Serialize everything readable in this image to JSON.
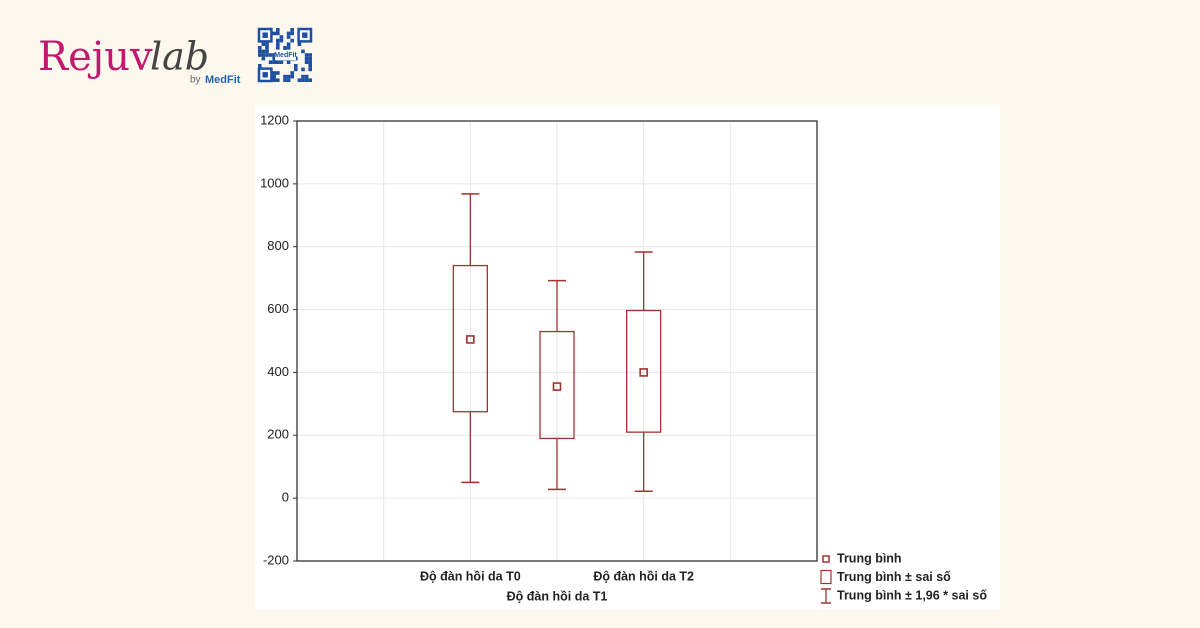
{
  "brand": {
    "name_1": "Rejuv",
    "name_2": "lab",
    "by": "by",
    "by_brand": "MedFit"
  },
  "chart_data": {
    "type": "box",
    "categories": [
      "Độ đàn hồi da T0",
      "Độ đàn hồi da T1",
      "Độ đàn hồi da T2"
    ],
    "mean": [
      505,
      355,
      400
    ],
    "box_low": [
      275,
      190,
      210
    ],
    "box_high": [
      740,
      530,
      597
    ],
    "whisker_low": [
      50,
      28,
      22
    ],
    "whisker_high": [
      968,
      692,
      783
    ],
    "color": "#a3322f",
    "ylim": [
      -200,
      1200
    ],
    "yticks": [
      -200,
      0,
      200,
      400,
      600,
      800,
      1000,
      1200
    ],
    "grid": true,
    "legend": [
      "Trung bình",
      "Trung bình ± sai số",
      "Trung bình ± 1,96 * sai số"
    ],
    "legend_position": "bottom-right"
  }
}
